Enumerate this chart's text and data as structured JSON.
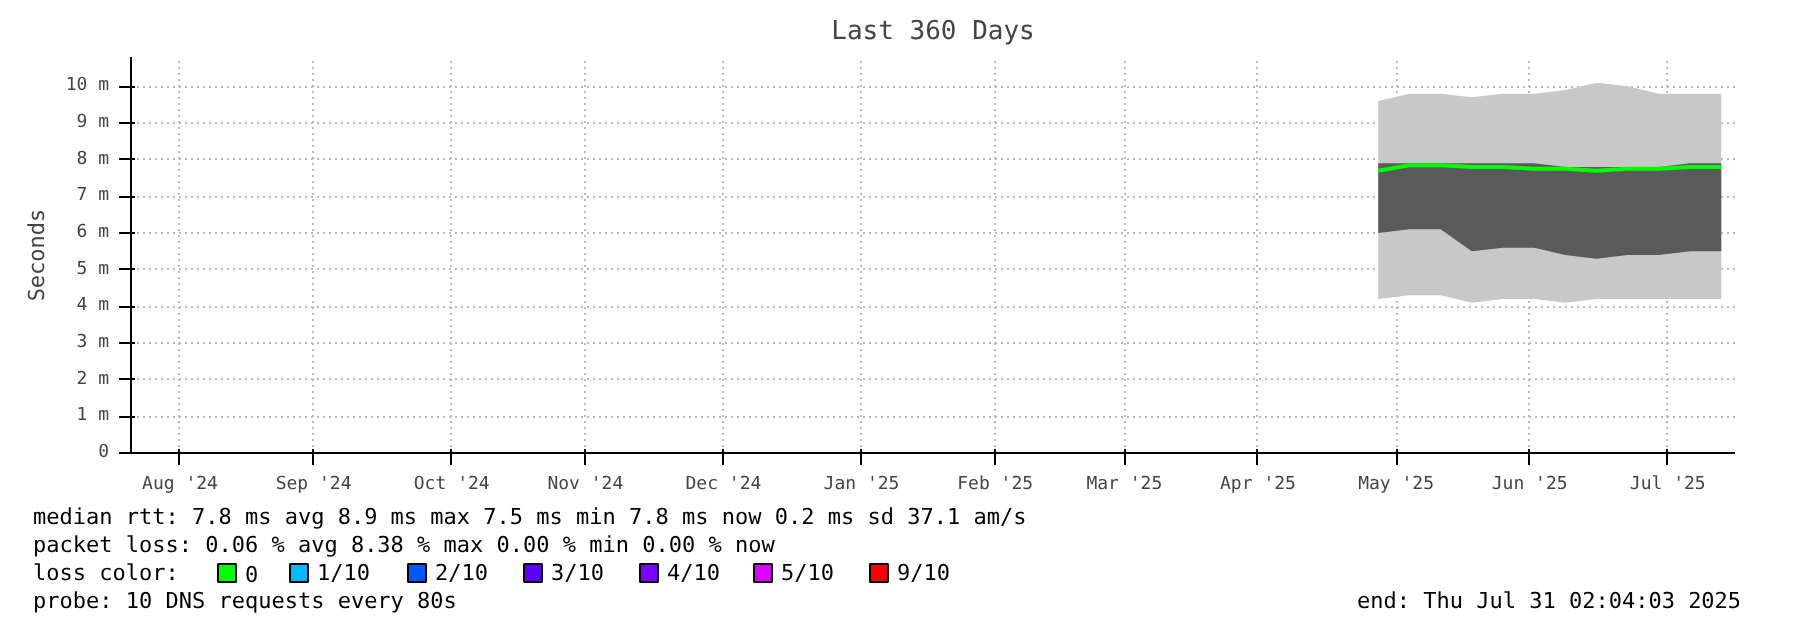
{
  "chart_data": {
    "type": "line",
    "title": "Last 360 Days",
    "ylabel": "Seconds",
    "x": [
      "2025-05-12",
      "2025-05-19",
      "2025-05-26",
      "2025-06-02",
      "2025-06-09",
      "2025-06-16",
      "2025-06-23",
      "2025-06-30",
      "2025-07-07",
      "2025-07-14",
      "2025-07-21",
      "2025-07-28"
    ],
    "xlim": [
      "2024-08-05",
      "2025-07-31T02:04"
    ],
    "xticks": [
      {
        "value": "2024-08-16",
        "label": "Aug '24"
      },
      {
        "value": "2024-09-15",
        "label": "Sep '24"
      },
      {
        "value": "2024-10-16",
        "label": "Oct '24"
      },
      {
        "value": "2024-11-15",
        "label": "Nov '24"
      },
      {
        "value": "2024-12-16",
        "label": "Dec '24"
      },
      {
        "value": "2025-01-16",
        "label": "Jan '25"
      },
      {
        "value": "2025-02-15",
        "label": "Feb '25"
      },
      {
        "value": "2025-03-16",
        "label": "Mar '25"
      },
      {
        "value": "2025-04-15",
        "label": "Apr '25"
      },
      {
        "value": "2025-05-16",
        "label": "May '25"
      },
      {
        "value": "2025-06-15",
        "label": "Jun '25"
      },
      {
        "value": "2025-07-16",
        "label": "Jul '25"
      }
    ],
    "ylim": [
      0,
      10.8
    ],
    "yticks": [
      0,
      {
        "value": 1,
        "label": "1 m"
      },
      {
        "value": 2,
        "label": "2 m"
      },
      {
        "value": 3,
        "label": "3 m"
      },
      {
        "value": 4,
        "label": "4 m"
      },
      {
        "value": 5,
        "label": "5 m"
      },
      {
        "value": 6,
        "label": "6 m"
      },
      {
        "value": 7,
        "label": "7 m"
      },
      {
        "value": 8,
        "label": "8 m"
      },
      {
        "value": 9,
        "label": "9 m"
      },
      {
        "value": 10,
        "label": "10 m"
      }
    ],
    "series": [
      {
        "color": "#c8c8c8",
        "values": [
          null,
          null,
          null,
          null,
          null,
          null,
          null,
          null,
          null,
          null,
          null,
          null
        ],
        "lower": [
          4.2,
          4.3,
          4.3,
          4.1,
          4.2,
          4.2,
          4.1,
          4.2,
          4.2,
          4.2,
          4.2,
          4.2
        ],
        "upper": [
          9.6,
          9.8,
          9.8,
          9.7,
          9.8,
          9.8,
          9.9,
          10.1,
          10.0,
          9.8,
          9.8,
          9.8
        ]
      },
      {
        "color": "#5a5a5a",
        "values": [
          null,
          null,
          null,
          null,
          null,
          null,
          null,
          null,
          null,
          null,
          null,
          null
        ],
        "lower": [
          6.0,
          6.1,
          6.1,
          5.5,
          5.6,
          5.6,
          5.4,
          5.3,
          5.4,
          5.4,
          5.5,
          5.5
        ],
        "upper": [
          7.9,
          7.9,
          7.9,
          7.9,
          7.9,
          7.9,
          7.8,
          7.8,
          7.8,
          7.8,
          7.9,
          7.9
        ]
      },
      {
        "name": "0",
        "color": "#00ff00",
        "values": [
          7.7,
          7.85,
          7.85,
          7.8,
          7.8,
          7.75,
          7.75,
          7.7,
          7.75,
          7.75,
          7.8,
          7.8
        ]
      },
      {
        "name": "1/10",
        "color": "#00b8ff",
        "values": [
          null,
          null,
          null,
          null,
          null,
          null,
          null,
          null,
          null,
          null,
          null,
          null
        ]
      },
      {
        "name": "2/10",
        "color": "#0059ff",
        "values": [
          null,
          null,
          null,
          null,
          null,
          null,
          null,
          null,
          null,
          null,
          null,
          null
        ]
      },
      {
        "name": "3/10",
        "color": "#5e00ff",
        "values": [
          null,
          null,
          null,
          null,
          null,
          null,
          null,
          null,
          null,
          null,
          null,
          null
        ]
      },
      {
        "name": "4/10",
        "color": "#7e00ff",
        "values": [
          null,
          null,
          null,
          null,
          null,
          null,
          null,
          null,
          null,
          null,
          null,
          null
        ]
      },
      {
        "name": "5/10",
        "color": "#dd00ff",
        "values": [
          null,
          null,
          null,
          null,
          null,
          null,
          null,
          null,
          null,
          null,
          null,
          null
        ]
      },
      {
        "name": "9/10",
        "color": "#ff0000",
        "values": [
          null,
          null,
          null,
          null,
          null,
          null,
          null,
          null,
          null,
          null,
          null,
          null
        ]
      }
    ],
    "legend": "bottom",
    "legend_title": "loss color:",
    "grid": true,
    "annotations": [
      "median rtt:  7.8 ms avg  8.9 ms max  7.5 ms min  7.8 ms now  0.2 ms sd  37.1   am/s",
      "packet loss: 0.06 % avg  8.38 % max  0.00 % min  0.00 % now",
      "probe:       10 DNS requests every 80s",
      "end: Thu Jul 31 02:04:03 2025"
    ]
  }
}
